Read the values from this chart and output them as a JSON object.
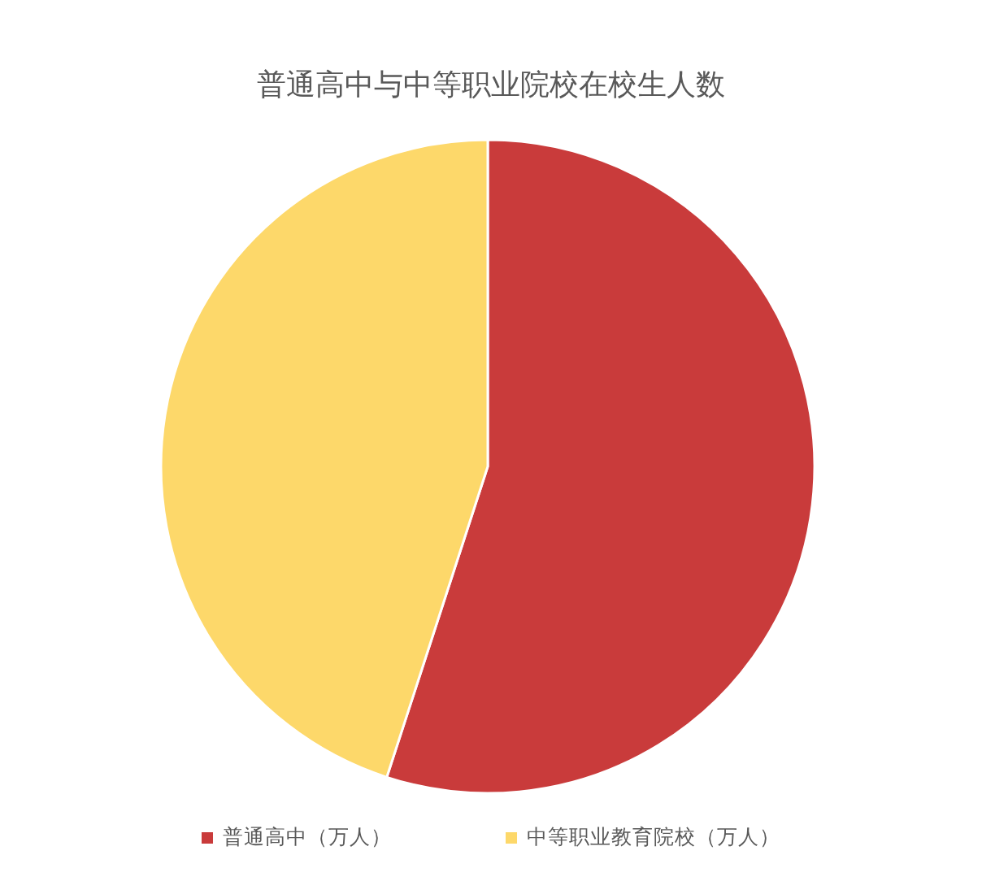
{
  "chart_data": {
    "type": "pie",
    "title": "普通高中与中等职业院校在校生人数",
    "categories": [
      "普通高中（万人）",
      "中等职业教育院校（万人）"
    ],
    "values": [
      55,
      45
    ],
    "colors": [
      "#c93b3b",
      "#fdd86a"
    ],
    "legend": "bottom"
  }
}
